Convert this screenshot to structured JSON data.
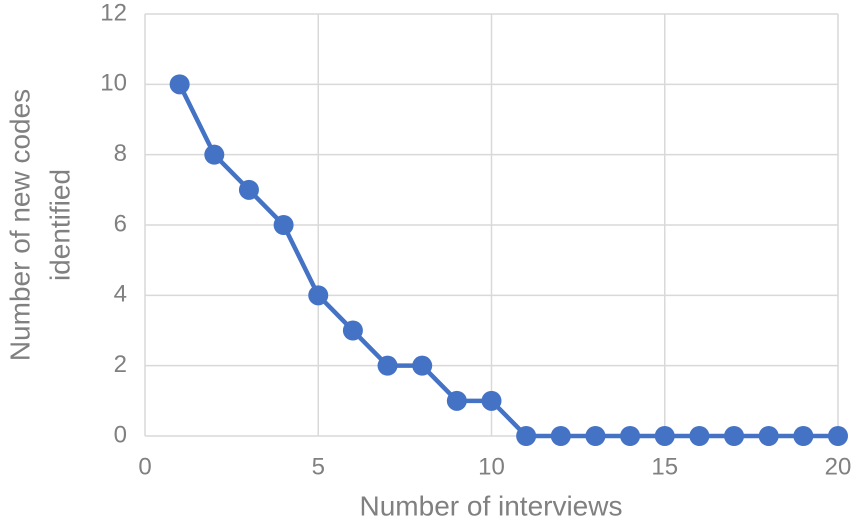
{
  "chart_data": {
    "type": "line",
    "xlabel": "Number of interviews",
    "ylabel": [
      "Number of new codes",
      "identified"
    ],
    "x": [
      1,
      2,
      3,
      4,
      5,
      6,
      7,
      8,
      9,
      10,
      11,
      12,
      13,
      14,
      15,
      16,
      17,
      18,
      19,
      20
    ],
    "series": [
      {
        "color": "#4472c4",
        "values": [
          10,
          8,
          7,
          6,
          4,
          3,
          2,
          2,
          1,
          1,
          0,
          0,
          0,
          0,
          0,
          0,
          0,
          0,
          0,
          0
        ]
      }
    ],
    "xlim": [
      0,
      20
    ],
    "xticks": [
      0,
      5,
      10,
      15,
      20
    ],
    "ylim": [
      0,
      12
    ],
    "yticks": [
      0,
      2,
      4,
      6,
      8,
      10,
      12
    ],
    "grid": true
  }
}
